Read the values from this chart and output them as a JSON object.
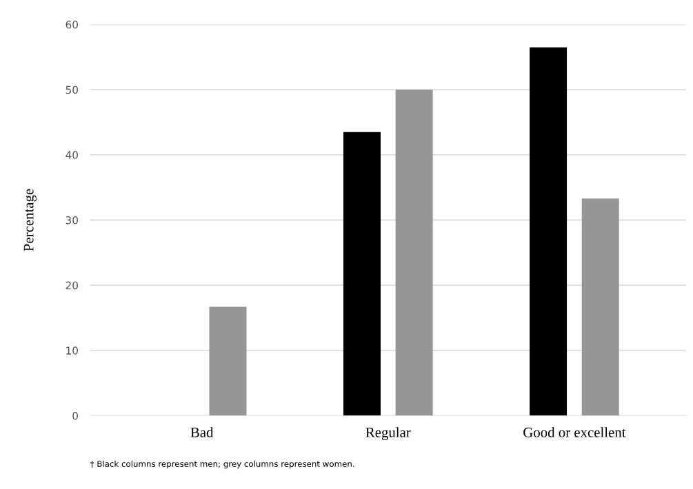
{
  "chart_data": {
    "type": "bar",
    "ylabel": "Percentage",
    "categories": [
      "Bad",
      "Regular",
      "Good or excellent"
    ],
    "series": [
      {
        "color": "#000000",
        "values": [
          0,
          43.5,
          56.5
        ]
      },
      {
        "color": "#969696",
        "values": [
          16.7,
          50,
          33.3
        ]
      }
    ],
    "ylim": [
      0,
      60
    ],
    "yticks": [
      0,
      10,
      20,
      30,
      40,
      50,
      60
    ],
    "grid": "y",
    "annotations": [
      "† Black columns represent men; grey columns represent women."
    ]
  }
}
